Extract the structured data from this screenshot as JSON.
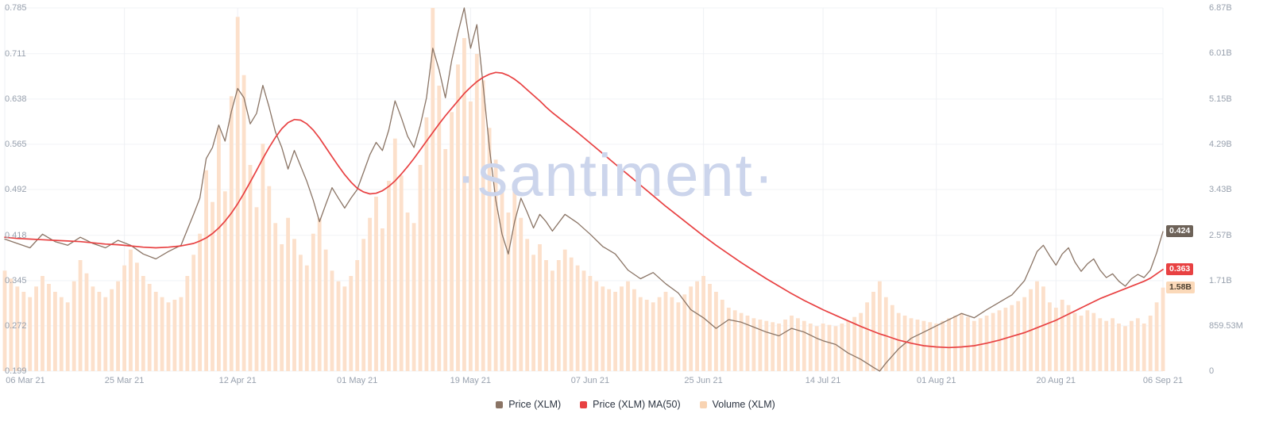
{
  "watermark": "·santiment·",
  "colors": {
    "price_line": "#8a7465",
    "ma_line": "#e84142",
    "volume_bar": "#fce0cb",
    "grid_h": "#f1f3f6",
    "grid_v": "#eef0f4",
    "axis_text": "#98a1ae",
    "badge_price_bg": "#6d6258",
    "badge_ma_bg": "#e84142",
    "badge_volume_bg": "#fbd9b9"
  },
  "axes": {
    "price_ticks": [
      {
        "label": "0.785",
        "value": 0.785
      },
      {
        "label": "0.711",
        "value": 0.711
      },
      {
        "label": "0.638",
        "value": 0.638
      },
      {
        "label": "0.565",
        "value": 0.565
      },
      {
        "label": "0.492",
        "value": 0.492
      },
      {
        "label": "0.418",
        "value": 0.418
      },
      {
        "label": "0.345",
        "value": 0.345
      },
      {
        "label": "0.272",
        "value": 0.272
      },
      {
        "label": "0.199",
        "value": 0.199
      }
    ],
    "volume_ticks": [
      {
        "label": "6.87B",
        "value": 6.87
      },
      {
        "label": "6.01B",
        "value": 6.01
      },
      {
        "label": "5.15B",
        "value": 5.15
      },
      {
        "label": "4.29B",
        "value": 4.29
      },
      {
        "label": "3.43B",
        "value": 3.43
      },
      {
        "label": "2.57B",
        "value": 2.57
      },
      {
        "label": "1.71B",
        "value": 1.71
      },
      {
        "label": "859.53M",
        "value": 0.85953
      },
      {
        "label": "0",
        "value": 0
      }
    ],
    "date_ticks": [
      {
        "label": "06 Mar 21",
        "day": 0
      },
      {
        "label": "25 Mar 21",
        "day": 19
      },
      {
        "label": "12 Apr 21",
        "day": 37
      },
      {
        "label": "01 May 21",
        "day": 56
      },
      {
        "label": "19 May 21",
        "day": 74
      },
      {
        "label": "07 Jun 21",
        "day": 93
      },
      {
        "label": "25 Jun 21",
        "day": 111
      },
      {
        "label": "14 Jul 21",
        "day": 130
      },
      {
        "label": "01 Aug 21",
        "day": 148
      },
      {
        "label": "20 Aug 21",
        "day": 167
      },
      {
        "label": "06 Sep 21",
        "day": 184
      }
    ]
  },
  "badges": [
    {
      "text": "0.424",
      "axis": "price",
      "value": 0.424,
      "bg": "#6d6258",
      "fg": "#ffffff"
    },
    {
      "text": "0.363",
      "axis": "price",
      "value": 0.363,
      "bg": "#e84142",
      "fg": "#ffffff"
    },
    {
      "text": "1.58B",
      "axis": "volume",
      "value": 1.58,
      "bg": "#fbd9b9",
      "fg": "#4e4334"
    }
  ],
  "legend": [
    {
      "label": "Price (XLM)",
      "color": "#8a7465"
    },
    {
      "label": "Price (XLM) MA(50)",
      "color": "#e84142"
    },
    {
      "label": "Volume (XLM)",
      "color": "#f8d3b2"
    }
  ],
  "chart_data": {
    "type": "line+bar",
    "title": "",
    "xlabel": "",
    "ylabel_left": "Price (XLM)",
    "ylabel_right": "Volume (XLM)",
    "legend_position": "bottom",
    "grid": true,
    "start_date": "06 Mar 21",
    "end_date": "06 Sep 21",
    "x_unit": "days since 06 Mar 21",
    "price_axis_range": [
      0.199,
      0.785
    ],
    "volume_axis_max_billions": 6.87,
    "days": [
      0,
      2,
      4,
      6,
      8,
      10,
      12,
      14,
      16,
      18,
      20,
      22,
      24,
      26,
      28,
      30,
      31,
      32,
      33,
      34,
      35,
      36,
      37,
      38,
      39,
      40,
      41,
      42,
      43,
      44,
      45,
      46,
      47,
      48,
      49,
      50,
      51,
      52,
      53,
      54,
      55,
      56,
      57,
      58,
      59,
      60,
      61,
      62,
      63,
      64,
      65,
      66,
      67,
      68,
      69,
      70,
      71,
      72,
      73,
      74,
      75,
      76,
      77,
      78,
      79,
      80,
      81,
      82,
      83,
      84,
      85,
      86,
      87,
      89,
      91,
      93,
      95,
      97,
      99,
      101,
      103,
      105,
      107,
      109,
      111,
      113,
      115,
      117,
      119,
      121,
      123,
      125,
      127,
      129,
      130,
      132,
      134,
      136,
      138,
      139,
      140,
      142,
      144,
      146,
      148,
      150,
      152,
      154,
      156,
      158,
      160,
      162,
      163,
      164,
      165,
      166,
      167,
      168,
      169,
      170,
      171,
      172,
      173,
      174,
      175,
      176,
      177,
      178,
      179,
      180,
      181,
      182,
      183,
      184
    ],
    "series": [
      {
        "name": "Price (XLM)",
        "type": "line",
        "axis": "price",
        "color": "#8a7465",
        "last_value": 0.424,
        "values": [
          0.412,
          0.405,
          0.398,
          0.42,
          0.408,
          0.402,
          0.415,
          0.405,
          0.398,
          0.41,
          0.402,
          0.388,
          0.38,
          0.392,
          0.402,
          0.452,
          0.478,
          0.542,
          0.56,
          0.596,
          0.57,
          0.618,
          0.655,
          0.64,
          0.598,
          0.615,
          0.66,
          0.625,
          0.585,
          0.56,
          0.525,
          0.555,
          0.53,
          0.505,
          0.475,
          0.44,
          0.468,
          0.495,
          0.478,
          0.462,
          0.478,
          0.492,
          0.52,
          0.548,
          0.568,
          0.555,
          0.588,
          0.635,
          0.608,
          0.578,
          0.56,
          0.595,
          0.64,
          0.72,
          0.685,
          0.64,
          0.7,
          0.745,
          0.785,
          0.72,
          0.758,
          0.66,
          0.56,
          0.475,
          0.42,
          0.388,
          0.44,
          0.478,
          0.455,
          0.43,
          0.452,
          0.44,
          0.425,
          0.452,
          0.438,
          0.42,
          0.4,
          0.388,
          0.362,
          0.348,
          0.358,
          0.34,
          0.325,
          0.298,
          0.285,
          0.268,
          0.282,
          0.278,
          0.27,
          0.262,
          0.256,
          0.268,
          0.262,
          0.252,
          0.248,
          0.242,
          0.228,
          0.218,
          0.205,
          0.199,
          0.212,
          0.235,
          0.252,
          0.262,
          0.272,
          0.282,
          0.292,
          0.285,
          0.298,
          0.31,
          0.322,
          0.345,
          0.368,
          0.392,
          0.402,
          0.385,
          0.37,
          0.388,
          0.398,
          0.375,
          0.36,
          0.372,
          0.38,
          0.362,
          0.35,
          0.356,
          0.344,
          0.336,
          0.348,
          0.355,
          0.35,
          0.362,
          0.39,
          0.424
        ]
      },
      {
        "name": "Price (XLM) MA(50)",
        "type": "line",
        "axis": "price",
        "color": "#e84142",
        "last_value": 0.363,
        "values": [
          0.415,
          0.413,
          0.412,
          0.411,
          0.41,
          0.409,
          0.408,
          0.406,
          0.404,
          0.403,
          0.401,
          0.399,
          0.398,
          0.399,
          0.401,
          0.405,
          0.409,
          0.414,
          0.421,
          0.43,
          0.441,
          0.454,
          0.469,
          0.486,
          0.504,
          0.523,
          0.542,
          0.56,
          0.576,
          0.59,
          0.6,
          0.605,
          0.604,
          0.598,
          0.588,
          0.575,
          0.56,
          0.545,
          0.53,
          0.516,
          0.504,
          0.494,
          0.488,
          0.485,
          0.486,
          0.49,
          0.497,
          0.506,
          0.517,
          0.529,
          0.542,
          0.556,
          0.57,
          0.584,
          0.598,
          0.611,
          0.623,
          0.635,
          0.647,
          0.657,
          0.666,
          0.673,
          0.678,
          0.681,
          0.68,
          0.676,
          0.67,
          0.662,
          0.653,
          0.644,
          0.635,
          0.625,
          0.616,
          0.6,
          0.584,
          0.567,
          0.55,
          0.533,
          0.516,
          0.499,
          0.482,
          0.465,
          0.449,
          0.433,
          0.417,
          0.402,
          0.388,
          0.374,
          0.361,
          0.348,
          0.336,
          0.324,
          0.313,
          0.303,
          0.298,
          0.289,
          0.28,
          0.271,
          0.263,
          0.259,
          0.256,
          0.249,
          0.244,
          0.24,
          0.238,
          0.237,
          0.238,
          0.24,
          0.244,
          0.249,
          0.255,
          0.261,
          0.265,
          0.269,
          0.273,
          0.277,
          0.281,
          0.286,
          0.291,
          0.296,
          0.301,
          0.306,
          0.311,
          0.316,
          0.32,
          0.324,
          0.328,
          0.332,
          0.336,
          0.34,
          0.344,
          0.349,
          0.356,
          0.363
        ]
      },
      {
        "name": "Volume (XLM)",
        "type": "bar",
        "axis": "volume",
        "color": "#fce0cb",
        "last_value_billions": 1.58,
        "values_billions": [
          1.9,
          1.6,
          1.4,
          1.8,
          1.5,
          1.3,
          2.1,
          1.6,
          1.4,
          1.7,
          2.3,
          1.8,
          1.5,
          1.3,
          1.4,
          2.2,
          2.6,
          3.8,
          3.2,
          4.6,
          3.4,
          5.2,
          6.7,
          5.6,
          3.9,
          3.1,
          4.3,
          3.5,
          2.8,
          2.4,
          2.9,
          2.5,
          2.2,
          2.0,
          2.6,
          2.9,
          2.3,
          1.9,
          1.7,
          1.6,
          1.8,
          2.1,
          2.5,
          2.9,
          3.3,
          2.7,
          3.6,
          4.4,
          3.7,
          3.0,
          2.8,
          3.9,
          4.8,
          6.87,
          5.4,
          4.2,
          4.9,
          5.8,
          6.3,
          5.1,
          6.0,
          5.5,
          4.6,
          4.0,
          3.4,
          3.0,
          3.5,
          2.9,
          2.5,
          2.2,
          2.4,
          2.1,
          1.9,
          2.3,
          2.0,
          1.8,
          1.6,
          1.5,
          1.7,
          1.4,
          1.3,
          1.5,
          1.3,
          1.6,
          1.8,
          1.5,
          1.2,
          1.1,
          1.0,
          0.95,
          0.9,
          1.05,
          0.95,
          0.85,
          0.9,
          0.85,
          0.95,
          1.1,
          1.5,
          1.7,
          1.4,
          1.1,
          1.0,
          0.95,
          0.9,
          1.0,
          1.1,
          0.95,
          1.05,
          1.15,
          1.25,
          1.4,
          1.55,
          1.7,
          1.6,
          1.3,
          1.2,
          1.35,
          1.25,
          1.1,
          1.05,
          1.15,
          1.1,
          1.0,
          0.95,
          1.0,
          0.9,
          0.85,
          0.95,
          1.0,
          0.9,
          1.05,
          1.3,
          1.58
        ]
      }
    ]
  }
}
